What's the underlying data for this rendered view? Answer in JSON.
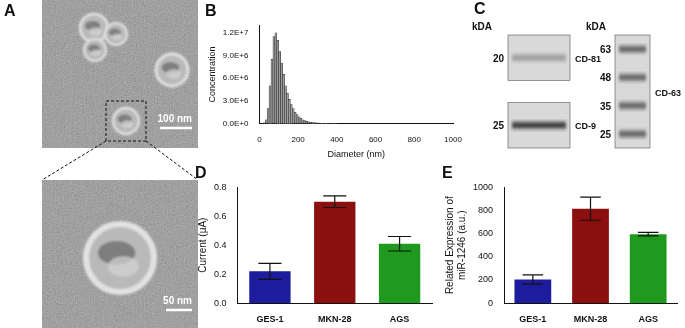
{
  "chart_data": [
    {
      "type": "histogram",
      "title": "B",
      "x_label": "Diameter (nm)",
      "y_label": "Concentration",
      "bins": [
        0,
        10,
        20,
        30,
        40,
        50,
        60,
        70,
        80,
        90,
        100,
        110,
        120,
        130,
        140,
        150,
        160,
        170,
        180,
        190,
        200,
        210,
        220,
        230,
        240,
        250,
        260,
        270,
        280,
        290,
        300,
        310,
        320,
        330,
        340,
        350,
        360,
        370,
        380,
        390,
        400
      ],
      "counts": [
        0,
        0,
        100000,
        500000,
        2000000,
        5000000,
        8500000,
        11500000,
        12000000,
        11000000,
        9500000,
        8000000,
        6500000,
        5000000,
        4000000,
        3200000,
        2500000,
        2000000,
        1500000,
        1200000,
        900000,
        700000,
        500000,
        400000,
        300000,
        250000,
        200000,
        150000,
        120000,
        100000,
        80000,
        60000,
        50000,
        40000,
        30000,
        20000,
        20000,
        10000,
        10000,
        10000
      ],
      "color": "#9e9e9e",
      "xlim": [
        0,
        1000
      ],
      "xticks": [
        0,
        200,
        400,
        600,
        800,
        1000
      ],
      "ylim": [
        0,
        13000000
      ],
      "yticks": [
        {
          "value": 0,
          "label": "0.0E+0"
        },
        {
          "value": 3000000,
          "label": "3.0E+6"
        },
        {
          "value": 6000000,
          "label": "6.0E+6"
        },
        {
          "value": 9000000,
          "label": "9.0E+6"
        },
        {
          "value": 12000000,
          "label": "1.2E+7"
        }
      ],
      "grid": false
    },
    {
      "type": "bar",
      "title": "D",
      "y_label": "Current (μA)",
      "categories": [
        "GES-1",
        "MKN-28",
        "AGS"
      ],
      "values": [
        0.22,
        0.7,
        0.41
      ],
      "errors": [
        0.055,
        0.04,
        0.05
      ],
      "colors": [
        "#1c1c9c",
        "#8c0f0f",
        "#1f9a1f"
      ],
      "ylim": [
        0,
        0.8
      ],
      "yticks": [
        {
          "value": 0,
          "label": "0.0"
        },
        0.2,
        0.4,
        0.6,
        0.8
      ],
      "grid": false
    },
    {
      "type": "bar",
      "title": "E",
      "y_label": [
        "Related Expression of",
        "miR-1246 (a.u.)"
      ],
      "categories": [
        "GES-1",
        "MKN-28",
        "AGS"
      ],
      "values": [
        205,
        815,
        595
      ],
      "errors": [
        40,
        100,
        15
      ],
      "colors": [
        "#1c1c9c",
        "#8c0f0f",
        "#1f9a1f"
      ],
      "ylim": [
        0,
        1000
      ],
      "yticks": [
        0,
        200,
        400,
        600,
        800,
        1000
      ],
      "grid": false
    }
  ],
  "image_panels": [
    {
      "title": "A",
      "type": "micrograph",
      "scale_bars": [
        "100 nm",
        "50 nm"
      ]
    },
    {
      "title": "C",
      "type": "western_blot",
      "columns": [
        {
          "unit": "kDA",
          "blots": [
            {
              "label": "CD-81",
              "markers": [
                20
              ]
            },
            {
              "label": "CD-9",
              "markers": [
                25
              ]
            }
          ]
        },
        {
          "unit": "kDA",
          "blots": [
            {
              "label": "CD-63",
              "markers": [
                63,
                48,
                35,
                25
              ]
            }
          ]
        }
      ]
    }
  ]
}
